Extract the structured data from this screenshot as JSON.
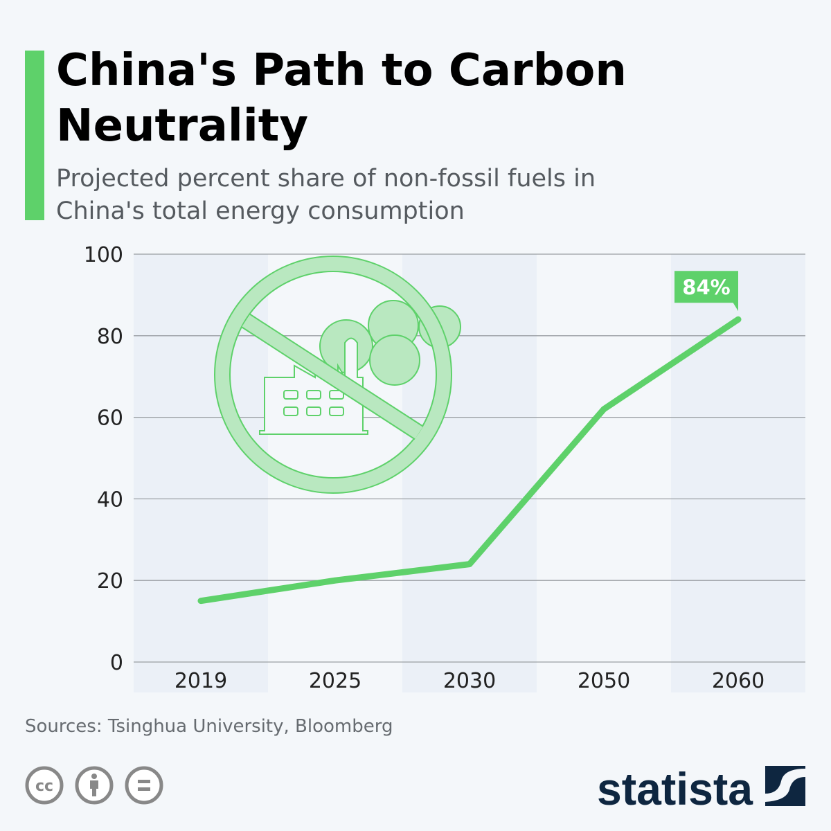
{
  "title": "China's Path to Carbon Neutrality",
  "subtitle": "Projected percent share of non-fossil fuels in China's total energy consumption",
  "source": "Sources: Tsinghua University, Bloomberg",
  "brand": "statista",
  "license_icons": [
    "cc-icon",
    "attribution-icon",
    "no-derivatives-icon"
  ],
  "colors": {
    "accent": "#5ed16a",
    "band": "#ebf0f7",
    "logo": "#0e2640"
  },
  "chart_data": {
    "type": "line",
    "categories": [
      "2019",
      "2025",
      "2030",
      "2050",
      "2060"
    ],
    "values": [
      15,
      20,
      24,
      62,
      84
    ],
    "ylim": [
      0,
      100
    ],
    "yticks": [
      0,
      20,
      40,
      60,
      80,
      100
    ],
    "grid": true,
    "annotation": {
      "category": "2060",
      "label": "84%"
    }
  }
}
